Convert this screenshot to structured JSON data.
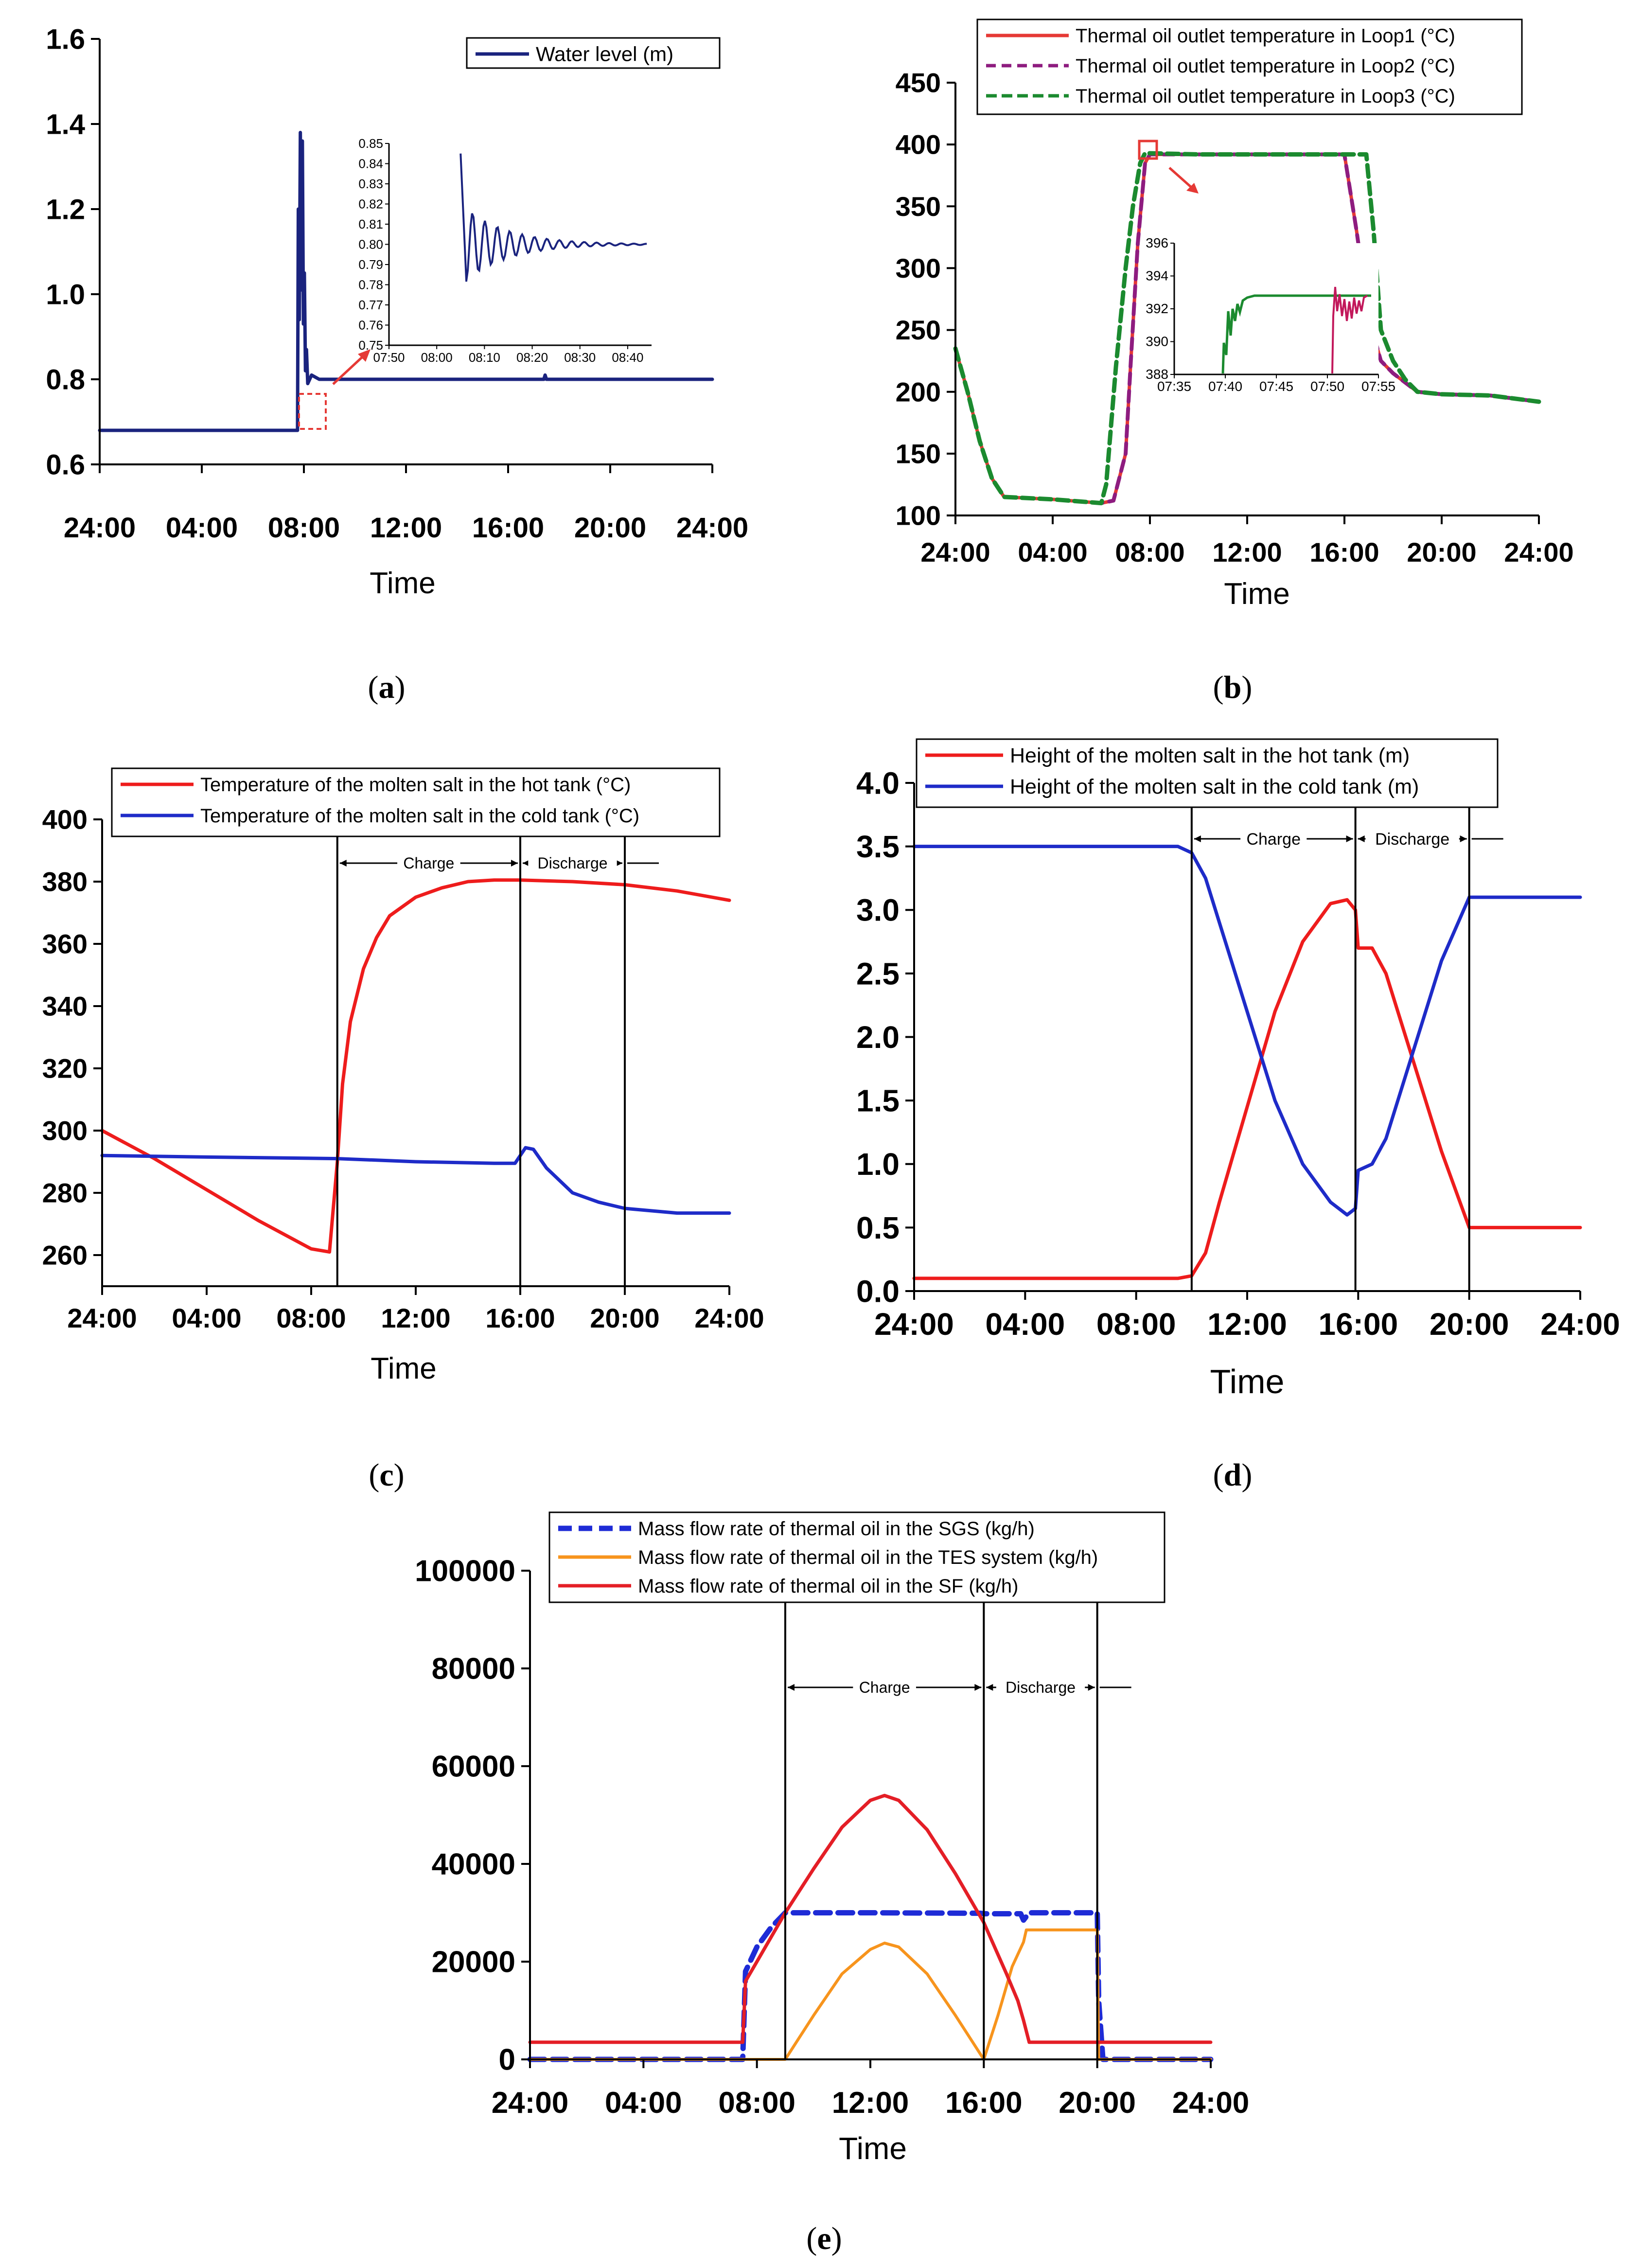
{
  "panels": [
    {
      "id": "a",
      "panel_label": "(a)",
      "letter": "a",
      "chart_data": {
        "type": "line",
        "title": "",
        "xlabel": "Time",
        "ylabel": "",
        "xlim": [
          0,
          24
        ],
        "ylim": [
          0.6,
          1.6
        ],
        "x_ticks": [
          "24:00",
          "04:00",
          "08:00",
          "12:00",
          "16:00",
          "20:00",
          "24:00"
        ],
        "y_ticks": [
          "0.6",
          "0.8",
          "1.0",
          "1.2",
          "1.4",
          "1.6"
        ],
        "legend": [
          "Water level (m)"
        ],
        "legend_position": "top-right",
        "series": [
          {
            "name": "Water level (m)",
            "color": "#1a237e",
            "x": [
              0,
              7.75,
              7.78,
              7.82,
              7.86,
              7.9,
              7.94,
              7.98,
              8.02,
              8.06,
              8.1,
              8.15,
              8.3,
              8.6,
              12,
              17.4,
              17.45,
              17.5,
              24
            ],
            "y": [
              0.68,
              0.68,
              1.2,
              0.94,
              1.38,
              1.01,
              1.36,
              0.93,
              1.05,
              0.82,
              0.87,
              0.79,
              0.81,
              0.8,
              0.8,
              0.8,
              0.81,
              0.8,
              0.8
            ]
          }
        ],
        "inset": {
          "xlim_minutes": [
            470,
            525
          ],
          "ylim": [
            0.75,
            0.85
          ],
          "x_ticks": [
            "07:50",
            "08:00",
            "08:10",
            "08:20",
            "08:30",
            "08:40"
          ],
          "y_ticks": [
            "0.75",
            "0.76",
            "0.77",
            "0.78",
            "0.79",
            "0.80",
            "0.81",
            "0.82",
            "0.83",
            "0.84",
            "0.85"
          ],
          "start_minute": 485,
          "start_value": 0.845,
          "end_minute": 524,
          "settle_value": 0.8
        }
      }
    },
    {
      "id": "b",
      "panel_label": "(b)",
      "letter": "b",
      "chart_data": {
        "type": "line",
        "title": "",
        "xlabel": "Time",
        "ylabel": "",
        "xlim": [
          0,
          24
        ],
        "ylim": [
          100,
          450
        ],
        "x_ticks": [
          "24:00",
          "04:00",
          "08:00",
          "12:00",
          "16:00",
          "20:00",
          "24:00"
        ],
        "y_ticks": [
          "100",
          "150",
          "200",
          "250",
          "300",
          "350",
          "400",
          "450"
        ],
        "legend": [
          "Thermal oil outlet temperature in Loop1 (°C)",
          "Thermal oil outlet temperature in Loop2 (°C)",
          "Thermal oil outlet temperature in Loop3 (°C)"
        ],
        "legend_position": "top-right",
        "series": [
          {
            "name": "Thermal oil outlet temperature in Loop1 (°C)",
            "color": "#e53935",
            "x": [
              0,
              0.5,
              1,
              1.5,
              2,
              4,
              6,
              6.5,
              7,
              7.2,
              7.5,
              7.8,
              8,
              10,
              12,
              15,
              16,
              16.5,
              17,
              17.5,
              18,
              19,
              20,
              22,
              24
            ],
            "y": [
              235,
              200,
              160,
              130,
              115,
              113,
              110,
              112,
              150,
              220,
              320,
              385,
              392,
              392,
              392,
              392,
              392,
              330,
              260,
              225,
              215,
              200,
              198,
              197,
              192
            ]
          },
          {
            "name": "Thermal oil outlet temperature in Loop2 (°C)",
            "color": "#8e1c7f",
            "x": [
              0,
              0.5,
              1,
              1.5,
              2,
              4,
              6,
              6.5,
              7,
              7.2,
              7.5,
              7.8,
              8,
              10,
              12,
              15,
              16,
              16.5,
              17,
              17.5,
              18,
              19,
              20,
              22,
              24
            ],
            "y": [
              235,
              200,
              160,
              130,
              115,
              113,
              110,
              112,
              150,
              220,
              320,
              385,
              392,
              392,
              392,
              392,
              392,
              330,
              260,
              225,
              215,
              200,
              198,
              197,
              192
            ]
          },
          {
            "name": "Thermal oil outlet temperature in Loop3 (°C)",
            "color": "#1b8a2f",
            "x": [
              0,
              0.5,
              1,
              1.5,
              2,
              4,
              6,
              6.2,
              6.6,
              7,
              7.3,
              7.6,
              7.8,
              10,
              12,
              15,
              16.9,
              17.2,
              17.5,
              18,
              18.5,
              19,
              20,
              22,
              24
            ],
            "y": [
              235,
              200,
              160,
              130,
              115,
              113,
              110,
              125,
              220,
              300,
              350,
              385,
              393,
              392,
              392,
              392,
              392,
              330,
              250,
              225,
              210,
              200,
              198,
              197,
              192
            ]
          }
        ],
        "inset": {
          "xlim_minutes": [
            455,
            475
          ],
          "ylim": [
            388,
            396
          ],
          "x_ticks": [
            "07:35",
            "07:40",
            "07:45",
            "07:50",
            "07:55"
          ],
          "y_ticks": [
            "388",
            "390",
            "392",
            "394",
            "396"
          ]
        }
      }
    },
    {
      "id": "c",
      "panel_label": "(c)",
      "letter": "c",
      "chart_data": {
        "type": "line",
        "title": "",
        "xlabel": "Time",
        "ylabel": "",
        "xlim": [
          0,
          24
        ],
        "ylim": [
          250,
          400
        ],
        "x_ticks": [
          "24:00",
          "04:00",
          "08:00",
          "12:00",
          "16:00",
          "20:00",
          "24:00"
        ],
        "y_ticks": [
          "260",
          "280",
          "300",
          "320",
          "340",
          "360",
          "380",
          "400"
        ],
        "legend": [
          "Temperature of the molten salt in the hot tank (°C)",
          "Temperature of the molten salt in the cold tank (°C)"
        ],
        "legend_position": "top-right",
        "annotations": {
          "charge": "Charge",
          "discharge": "Discharge",
          "charge_start": 9,
          "charge_end": 16,
          "discharge_end": 20
        },
        "series": [
          {
            "name": "Temperature of the molten salt in the hot tank (°C)",
            "color": "#ee1c1c",
            "x": [
              0,
              2,
              4,
              6,
              8,
              8.7,
              9,
              9.2,
              9.5,
              10,
              10.5,
              11,
              12,
              13,
              14,
              15,
              16,
              18,
              20,
              22,
              24
            ],
            "y": [
              300,
              291,
              281,
              271,
              262,
              261,
              290,
              315,
              335,
              352,
              362,
              369,
              375,
              378,
              380,
              380.5,
              380.5,
              380,
              379,
              377,
              374
            ]
          },
          {
            "name": "Temperature of the molten salt in the cold tank (°C)",
            "color": "#1e2bc8",
            "x": [
              0,
              4,
              9,
              12,
              15,
              15.8,
              16.2,
              16.5,
              17,
              18,
              19,
              20,
              22,
              24
            ],
            "y": [
              292,
              291.5,
              291,
              290,
              289.5,
              289.5,
              294.5,
              294,
              288,
              280,
              277,
              275,
              273.5,
              273.5
            ]
          }
        ]
      }
    },
    {
      "id": "d",
      "panel_label": "(d)",
      "letter": "d",
      "chart_data": {
        "type": "line",
        "title": "",
        "xlabel": "Time",
        "ylabel": "",
        "xlim": [
          0,
          24
        ],
        "ylim": [
          0,
          4
        ],
        "x_ticks": [
          "24:00",
          "04:00",
          "08:00",
          "12:00",
          "16:00",
          "20:00",
          "24:00"
        ],
        "y_ticks": [
          "0.0",
          "0.5",
          "1.0",
          "1.5",
          "2.0",
          "2.5",
          "3.0",
          "3.5",
          "4.0"
        ],
        "legend": [
          "Height of the molten salt in the hot tank (m)",
          "Height of the molten salt in the cold tank (m)"
        ],
        "legend_position": "top-right",
        "annotations": {
          "charge": "Charge",
          "discharge": "Discharge",
          "charge_start": 10,
          "charge_end": 15.9,
          "discharge_end": 20
        },
        "series": [
          {
            "name": "Height of the molten salt in the hot tank (m)",
            "color": "#ee1c1c",
            "x": [
              0,
              9.5,
              10,
              10.5,
              11,
              12,
              13,
              14,
              15,
              15.6,
              15.9,
              16,
              16.5,
              17,
              18,
              19,
              20,
              22,
              24
            ],
            "y": [
              0.1,
              0.1,
              0.12,
              0.3,
              0.7,
              1.45,
              2.2,
              2.75,
              3.05,
              3.08,
              3.0,
              2.7,
              2.7,
              2.5,
              1.8,
              1.1,
              0.5,
              0.5,
              0.5
            ]
          },
          {
            "name": "Height of the molten salt in the cold tank (m)",
            "color": "#1e2bc8",
            "x": [
              0,
              9.5,
              10,
              10.5,
              11,
              12,
              13,
              14,
              15,
              15.6,
              15.9,
              16,
              16.5,
              17,
              18,
              19,
              20,
              22,
              24
            ],
            "y": [
              3.5,
              3.5,
              3.45,
              3.25,
              2.9,
              2.2,
              1.5,
              1.0,
              0.7,
              0.6,
              0.65,
              0.95,
              1.0,
              1.2,
              1.9,
              2.6,
              3.1,
              3.1,
              3.1
            ]
          }
        ]
      }
    },
    {
      "id": "e",
      "panel_label": "(e)",
      "letter": "e",
      "chart_data": {
        "type": "line",
        "title": "",
        "xlabel": "Time",
        "ylabel": "",
        "xlim": [
          0,
          24
        ],
        "ylim": [
          0,
          100000
        ],
        "x_ticks": [
          "24:00",
          "04:00",
          "08:00",
          "12:00",
          "16:00",
          "20:00",
          "24:00"
        ],
        "y_ticks": [
          "0",
          "20000",
          "40000",
          "60000",
          "80000",
          "100000"
        ],
        "legend": [
          "Mass flow rate of thermal oil in the SGS (kg/h)",
          "Mass flow rate of thermal oil in the TES system (kg/h)",
          "Mass flow rate of thermal oil in the SF (kg/h)"
        ],
        "legend_position": "top-center",
        "annotations": {
          "charge": "Charge",
          "discharge": "Discharge",
          "charge_start": 9,
          "charge_end": 16,
          "discharge_end": 20
        },
        "series": [
          {
            "name": "Mass flow rate of thermal oil in the SGS (kg/h)",
            "color": "#1e2bd6",
            "x": [
              0,
              7.5,
              7.6,
              8,
              8.5,
              9,
              12,
              15.9,
              16,
              17.3,
              17.4,
              17.6,
              20,
              20.05,
              20.2,
              24
            ],
            "y": [
              0,
              0,
              18000,
              23000,
              27000,
              30000,
              30000,
              29900,
              29800,
              29800,
              28500,
              30000,
              30000,
              12000,
              0,
              0
            ]
          },
          {
            "name": "Mass flow rate of thermal oil in the TES system (kg/h)",
            "color": "#f7941d",
            "x": [
              0,
              8.7,
              9,
              10,
              11,
              12,
              12.5,
              13,
              14,
              15,
              16,
              16.5,
              17,
              17.4,
              17.5,
              20,
              20.05,
              24
            ],
            "y": [
              0,
              0,
              0,
              9000,
              17500,
              22500,
              23800,
              23000,
              17500,
              9000,
              0,
              9000,
              19000,
              24000,
              26500,
              26500,
              0,
              0
            ]
          },
          {
            "name": "Mass flow rate of thermal oil in the SF (kg/h)",
            "color": "#e41e26",
            "x": [
              0,
              7.5,
              7.6,
              8,
              8.5,
              9,
              10,
              11,
              12,
              12.5,
              13,
              14,
              15,
              16,
              16.8,
              17.2,
              17.4,
              17.6,
              20,
              24
            ],
            "y": [
              3500,
              3500,
              16000,
              20000,
              25000,
              30000,
              39000,
              47500,
              53000,
              54000,
              53000,
              47000,
              38000,
              28000,
              17500,
              12000,
              8000,
              3500,
              3500,
              3500
            ]
          }
        ]
      }
    }
  ]
}
